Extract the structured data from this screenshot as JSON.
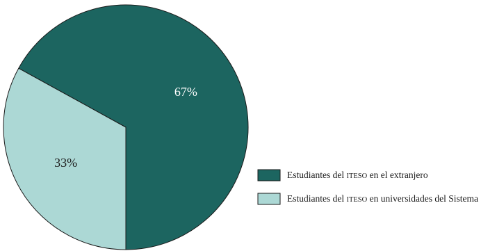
{
  "chart_data": {
    "type": "pie",
    "slices": [
      {
        "label": "Estudiantes del ITESO en el extranjero",
        "value": 67,
        "display": "67%",
        "color": "#1c6560",
        "text_color": "#ffffff"
      },
      {
        "label": "Estudiantes del ITESO en universidades del Sistema",
        "value": 33,
        "display": "33%",
        "color": "#acd8d5",
        "text_color": "#1a1a1a"
      }
    ],
    "legend": {
      "placement": "right",
      "items": [
        {
          "prefix": "Estudiantes del ",
          "abbr": "ITESO",
          "suffix": " en el extranjero"
        },
        {
          "prefix": "Estudiantes del ",
          "abbr": "ITESO",
          "suffix": " en universidades del Sistema"
        }
      ]
    }
  }
}
